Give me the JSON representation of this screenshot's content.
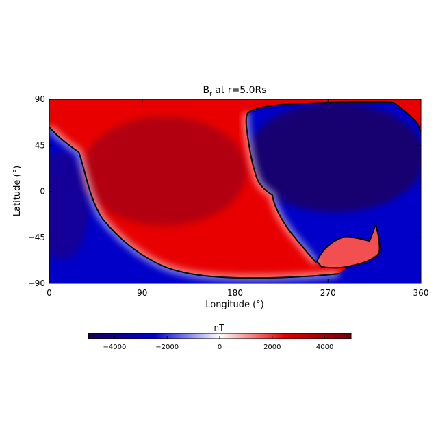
{
  "chart_data": {
    "type": "heatmap",
    "title": "B",
    "title_subscript": "r",
    "title_suffix": " at r=5.0Rs",
    "xlabel": "Longitude (°)",
    "ylabel": "Latitude (°)",
    "xlim": [
      0,
      360
    ],
    "ylim": [
      -90,
      90
    ],
    "x_ticks": [
      0,
      90,
      180,
      270,
      360
    ],
    "x_tick_labels": [
      "0",
      "90",
      "180",
      "270",
      "360"
    ],
    "y_ticks": [
      90,
      45,
      0,
      -45,
      -90
    ],
    "y_tick_labels": [
      "90",
      "45",
      "0",
      "−45",
      "−90"
    ],
    "colorbar": {
      "label": "nT",
      "range": [
        -5000,
        5000
      ],
      "ticks": [
        -4000,
        -2000,
        0,
        2000,
        4000
      ],
      "tick_labels": [
        "−4000",
        "−2000",
        "0",
        "2000",
        "4000"
      ],
      "colors": [
        "#1a0050",
        "#0000d0",
        "#ffffff",
        "#e00000",
        "#700010"
      ]
    },
    "regions": [
      {
        "name": "positive polarity",
        "sign": "positive",
        "color": "#e80000"
      },
      {
        "name": "negative polarity",
        "sign": "negative",
        "color": "#0000c8"
      }
    ],
    "grid": false,
    "neutral_line_color": "#000000"
  }
}
